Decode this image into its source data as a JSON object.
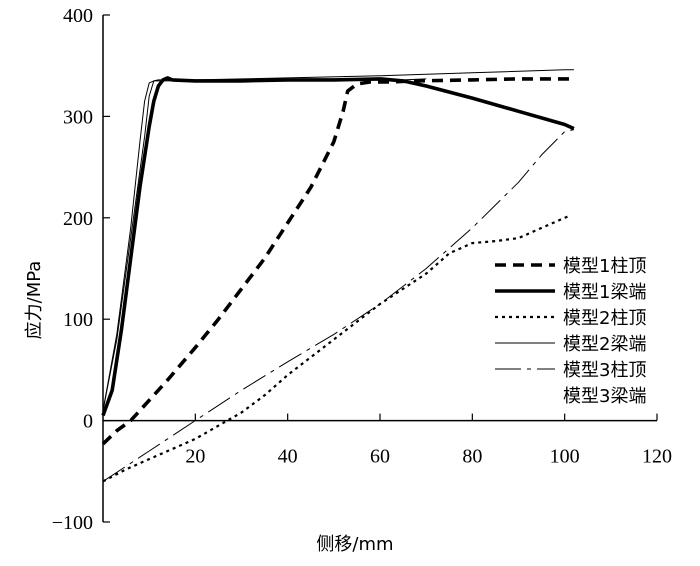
{
  "chart_data": {
    "type": "line",
    "xlabel": "侧移/mm",
    "ylabel": "应力/MPa",
    "xlim": [
      0,
      120
    ],
    "ylim": [
      -100,
      400
    ],
    "x_ticks": [
      20,
      40,
      60,
      80,
      100,
      120
    ],
    "y_ticks": [
      -100,
      0,
      100,
      200,
      300,
      400
    ],
    "x_tick_labels": [
      "20",
      "40",
      "60",
      "80",
      "100",
      "120"
    ],
    "y_tick_labels": [
      "−100",
      "0",
      "100",
      "200",
      "300",
      "400"
    ],
    "grid": false,
    "legend_position": "right",
    "series": [
      {
        "name": "模型1柱顶",
        "style": "thick-dashed",
        "color": "#000000",
        "points": [
          [
            0,
            -23
          ],
          [
            3,
            -10
          ],
          [
            6,
            0
          ],
          [
            10,
            20
          ],
          [
            14,
            40
          ],
          [
            20,
            72
          ],
          [
            25,
            100
          ],
          [
            30,
            130
          ],
          [
            35,
            160
          ],
          [
            40,
            195
          ],
          [
            45,
            230
          ],
          [
            50,
            275
          ],
          [
            52,
            305
          ],
          [
            53,
            325
          ],
          [
            55,
            332
          ],
          [
            58,
            334
          ],
          [
            62,
            334
          ],
          [
            68,
            335
          ],
          [
            80,
            336
          ],
          [
            90,
            337
          ],
          [
            100,
            337
          ],
          [
            102,
            337
          ]
        ]
      },
      {
        "name": "模型1梁端",
        "style": "thick-solid",
        "color": "#000000",
        "points": [
          [
            0,
            5
          ],
          [
            2,
            30
          ],
          [
            4,
            90
          ],
          [
            6,
            160
          ],
          [
            8,
            230
          ],
          [
            10,
            290
          ],
          [
            11,
            315
          ],
          [
            12,
            330
          ],
          [
            13,
            336
          ],
          [
            14,
            338
          ],
          [
            15,
            336
          ],
          [
            20,
            335
          ],
          [
            30,
            335
          ],
          [
            40,
            336
          ],
          [
            50,
            336
          ],
          [
            60,
            337
          ],
          [
            65,
            335
          ],
          [
            70,
            330
          ],
          [
            80,
            318
          ],
          [
            90,
            305
          ],
          [
            100,
            292
          ],
          [
            102,
            288
          ]
        ]
      },
      {
        "name": "模型2柱顶",
        "style": "dotted",
        "color": "#000000",
        "points": [
          [
            0,
            -60
          ],
          [
            5,
            -48
          ],
          [
            10,
            -38
          ],
          [
            15,
            -28
          ],
          [
            20,
            -18
          ],
          [
            25,
            -5
          ],
          [
            30,
            8
          ],
          [
            35,
            25
          ],
          [
            40,
            45
          ],
          [
            50,
            80
          ],
          [
            60,
            115
          ],
          [
            70,
            145
          ],
          [
            75,
            165
          ],
          [
            80,
            175
          ],
          [
            85,
            177
          ],
          [
            90,
            180
          ],
          [
            95,
            190
          ],
          [
            101,
            202
          ]
        ]
      },
      {
        "name": "模型2梁端",
        "style": "thin-solid",
        "color": "#000000",
        "points": [
          [
            0,
            10
          ],
          [
            3,
            80
          ],
          [
            6,
            180
          ],
          [
            9,
            280
          ],
          [
            10,
            320
          ],
          [
            11,
            335
          ],
          [
            12,
            336
          ],
          [
            20,
            336
          ],
          [
            40,
            338
          ],
          [
            60,
            340
          ],
          [
            80,
            343
          ],
          [
            100,
            346
          ],
          [
            102,
            346
          ]
        ]
      },
      {
        "name": "模型3柱顶",
        "style": "long-dash",
        "color": "#000000",
        "points": [
          [
            0,
            -60
          ],
          [
            5,
            -45
          ],
          [
            10,
            -30
          ],
          [
            15,
            -15
          ],
          [
            20,
            0
          ],
          [
            30,
            30
          ],
          [
            40,
            58
          ],
          [
            50,
            85
          ],
          [
            60,
            115
          ],
          [
            70,
            150
          ],
          [
            80,
            190
          ],
          [
            90,
            235
          ],
          [
            95,
            262
          ],
          [
            100,
            285
          ],
          [
            102,
            287
          ]
        ]
      },
      {
        "name": "模型3梁端",
        "style": "thin-solid",
        "color": "#000000",
        "points": [
          [
            0,
            10
          ],
          [
            3,
            85
          ],
          [
            6,
            190
          ],
          [
            8,
            275
          ],
          [
            9,
            315
          ],
          [
            10,
            333
          ],
          [
            11,
            335
          ],
          [
            20,
            335
          ],
          [
            40,
            336
          ],
          [
            60,
            337
          ],
          [
            62,
            336
          ],
          [
            65,
            336
          ],
          [
            70,
            337
          ]
        ]
      }
    ]
  }
}
